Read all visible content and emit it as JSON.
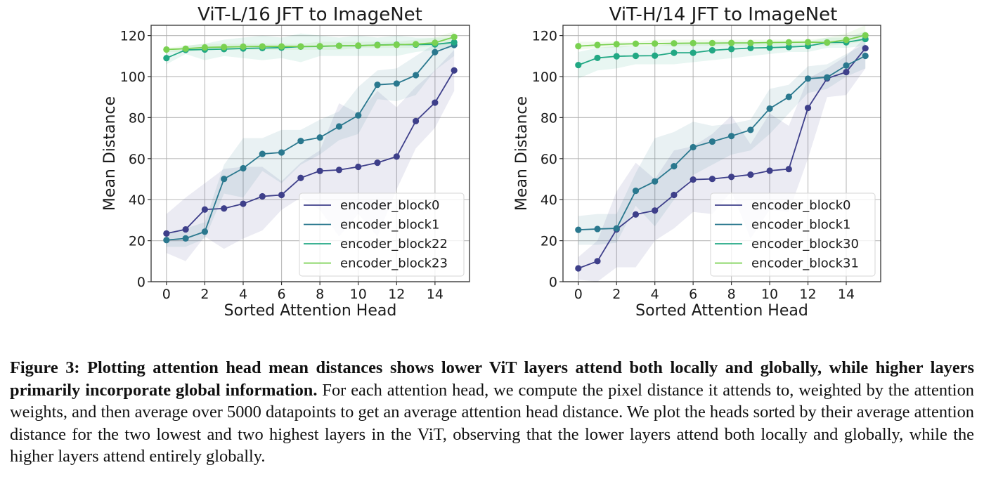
{
  "chart_data": [
    {
      "type": "line",
      "title": "ViT-L/16 JFT to ImageNet",
      "xlabel": "Sorted Attention Head",
      "ylabel": "Mean Distance",
      "xlim": [
        -0.8,
        15.8
      ],
      "ylim": [
        0,
        125
      ],
      "xticks": [
        0,
        2,
        4,
        6,
        8,
        10,
        12,
        14
      ],
      "yticks": [
        0,
        20,
        40,
        60,
        80,
        100,
        120
      ],
      "grid": true,
      "legend_position": "lower-right",
      "x": [
        0,
        1,
        2,
        3,
        4,
        5,
        6,
        7,
        8,
        9,
        10,
        11,
        12,
        13,
        14,
        15
      ],
      "series": [
        {
          "name": "encoder_block0",
          "color": "#3e3f8a",
          "band_color": "#3e3f8a",
          "values": [
            23.5,
            25.5,
            35.2,
            35.7,
            38.0,
            41.6,
            42.3,
            50.6,
            54.0,
            54.5,
            56.0,
            58.0,
            61.0,
            78.3,
            87.3,
            103.0
          ],
          "band_lower": [
            14,
            10,
            22,
            16,
            21,
            25,
            35,
            41,
            35,
            22,
            33,
            22,
            45,
            65,
            75,
            93
          ],
          "band_upper": [
            33,
            41,
            48,
            55,
            56,
            56,
            49,
            58,
            64,
            87,
            82,
            93,
            85,
            95,
            103,
            113
          ]
        },
        {
          "name": "encoder_block1",
          "color": "#2a788e",
          "band_color": "#2a788e",
          "values": [
            20.3,
            21.1,
            24.4,
            50.1,
            55.3,
            62.3,
            63.0,
            68.6,
            70.3,
            75.7,
            81.1,
            96.0,
            96.6,
            100.7,
            111.9,
            115.4
          ],
          "band_lower": [
            17,
            17,
            21,
            43,
            41,
            54,
            48,
            57,
            62,
            69,
            72,
            89,
            88,
            91,
            103,
            110
          ],
          "band_upper": [
            24,
            26,
            29,
            57,
            70,
            70,
            74,
            74,
            79,
            83,
            95,
            103,
            104,
            110,
            116,
            117
          ]
        },
        {
          "name": "encoder_block22",
          "color": "#22a884",
          "band_color": "#22a884",
          "values": [
            109.0,
            113.0,
            113.2,
            113.4,
            113.7,
            113.9,
            114.1,
            114.6,
            114.7,
            115.0,
            115.0,
            115.4,
            115.6,
            115.6,
            115.7,
            116.7
          ],
          "band_lower": [
            106,
            111,
            108,
            110,
            109,
            108,
            109,
            107,
            110,
            110,
            110,
            110,
            110,
            112,
            113,
            114
          ],
          "band_upper": [
            112,
            115,
            116,
            118,
            119,
            120,
            119,
            121,
            120,
            119,
            120,
            119,
            120,
            119,
            119,
            119
          ]
        },
        {
          "name": "encoder_block23",
          "color": "#7ad151",
          "band_color": "#7ad151",
          "values": [
            113.2,
            113.6,
            114.2,
            114.4,
            114.6,
            114.7,
            114.7,
            114.7,
            114.8,
            115.0,
            115.1,
            115.3,
            115.5,
            115.8,
            116.5,
            119.3
          ],
          "band_lower": [
            112,
            112,
            113,
            113,
            113,
            113,
            113,
            113,
            113,
            113,
            114,
            114,
            114,
            114,
            115,
            116
          ],
          "band_upper": [
            114,
            115,
            116,
            116,
            116,
            116,
            116,
            116,
            117,
            117,
            117,
            117,
            117,
            118,
            119,
            122
          ]
        }
      ]
    },
    {
      "type": "line",
      "title": "ViT-H/14 JFT to ImageNet",
      "xlabel": "Sorted Attention Head",
      "ylabel": "Mean Distance",
      "xlim": [
        -0.8,
        15.8
      ],
      "ylim": [
        0,
        125
      ],
      "xticks": [
        0,
        2,
        4,
        6,
        8,
        10,
        12,
        14
      ],
      "yticks": [
        0,
        20,
        40,
        60,
        80,
        100,
        120
      ],
      "grid": true,
      "legend_position": "lower-right",
      "x": [
        0,
        1,
        2,
        3,
        4,
        5,
        6,
        7,
        8,
        9,
        10,
        11,
        12,
        13,
        14,
        15
      ],
      "series": [
        {
          "name": "encoder_block0",
          "color": "#3e3f8a",
          "band_color": "#3e3f8a",
          "values": [
            6.5,
            10.0,
            25.5,
            32.8,
            34.7,
            42.3,
            49.8,
            50.1,
            51.1,
            52.2,
            54.1,
            54.9,
            84.7,
            99.1,
            102.2,
            113.8
          ],
          "band_lower": [
            1,
            0,
            7,
            7,
            20,
            26,
            34,
            33,
            44,
            21,
            35,
            34,
            60,
            90,
            91,
            104
          ],
          "band_upper": [
            12,
            20,
            44,
            58,
            50,
            64,
            66,
            72,
            81,
            67,
            82,
            76,
            99,
            104,
            110,
            119
          ]
        },
        {
          "name": "encoder_block1",
          "color": "#2a788e",
          "band_color": "#2a788e",
          "values": [
            25.3,
            25.7,
            26.0,
            44.3,
            48.9,
            56.3,
            65.6,
            68.3,
            71.0,
            74.0,
            84.4,
            90.1,
            99.0,
            99.6,
            105.4,
            110.1
          ],
          "band_lower": [
            18,
            18,
            19,
            37,
            27,
            40,
            52,
            57,
            62,
            64,
            72,
            82,
            92,
            94,
            100,
            104
          ],
          "band_upper": [
            32,
            33,
            33,
            53,
            70,
            73,
            78,
            76,
            77,
            79,
            94,
            96,
            105,
            106,
            111,
            116
          ]
        },
        {
          "name": "encoder_block30",
          "color": "#22a884",
          "band_color": "#22a884",
          "values": [
            105.6,
            109.1,
            109.9,
            110.1,
            110.2,
            111.6,
            111.6,
            112.8,
            113.4,
            113.9,
            114.1,
            114.4,
            114.9,
            116.6,
            116.7,
            118.3
          ],
          "band_lower": [
            99,
            103,
            104,
            106,
            106,
            106,
            107,
            108,
            109,
            110,
            111,
            112,
            112,
            114,
            114,
            115
          ],
          "band_upper": [
            112,
            114,
            115,
            115,
            115,
            116,
            116,
            117,
            117,
            117,
            117,
            117,
            117,
            119,
            119,
            122
          ]
        },
        {
          "name": "encoder_block31",
          "color": "#7ad151",
          "band_color": "#7ad151",
          "values": [
            114.8,
            115.4,
            115.8,
            116.0,
            116.1,
            116.2,
            116.3,
            116.3,
            116.4,
            116.4,
            116.6,
            116.7,
            116.8,
            116.6,
            117.9,
            120.1
          ],
          "band_lower": [
            113,
            114,
            114,
            115,
            115,
            115,
            115,
            115,
            115,
            115,
            115,
            115,
            115,
            115,
            116,
            117
          ],
          "band_upper": [
            117,
            117,
            117,
            117,
            118,
            118,
            118,
            118,
            118,
            118,
            118,
            118,
            118,
            119,
            121,
            125
          ]
        }
      ]
    }
  ],
  "caption": {
    "label": "Figure 3:",
    "bold_text": "Plotting attention head mean distances shows lower ViT layers attend both locally and globally, while higher layers primarily incorporate global information.",
    "body_text": "For each attention head, we compute the pixel distance it attends to, weighted by the attention weights, and then average over 5000 datapoints to get an average attention head distance. We plot the heads sorted by their average attention distance for the two lowest and two highest layers in the ViT, observing that the lower layers attend both locally and globally, while the higher layers attend entirely globally."
  }
}
